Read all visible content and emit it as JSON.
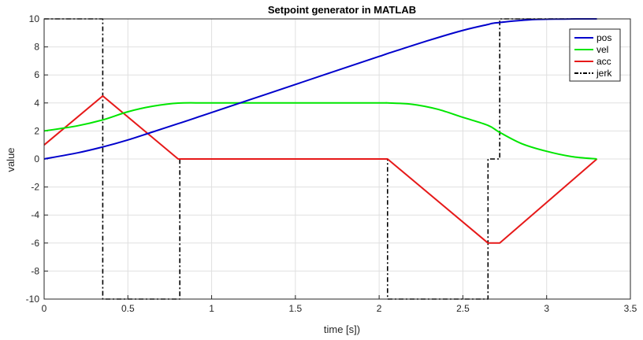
{
  "chart_data": {
    "type": "line",
    "title": "Setpoint generator in MATLAB",
    "xlabel": "time [s])",
    "ylabel": "value",
    "xlim": [
      0,
      3.5
    ],
    "ylim": [
      -10,
      10
    ],
    "xticks": [
      "0",
      "0.5",
      "1",
      "1.5",
      "2",
      "2.5",
      "3",
      "3.5"
    ],
    "yticks": [
      "-10",
      "-8",
      "-6",
      "-4",
      "-2",
      "0",
      "2",
      "4",
      "6",
      "8",
      "10"
    ],
    "grid": true,
    "legend_position": "top-right",
    "series": [
      {
        "name": "pos",
        "color": "#0000cc",
        "style": "solid",
        "x": [
          0,
          0.2,
          0.35,
          0.5,
          0.65,
          0.8,
          1.0,
          1.5,
          2.0,
          2.05,
          2.3,
          2.5,
          2.65,
          2.7,
          2.9,
          3.1,
          3.3
        ],
        "y": [
          0,
          0.44,
          0.86,
          1.36,
          1.94,
          2.52,
          3.32,
          5.32,
          7.32,
          7.52,
          8.48,
          9.18,
          9.6,
          9.72,
          9.94,
          9.99,
          10.0
        ]
      },
      {
        "name": "vel",
        "color": "#00e600",
        "style": "solid",
        "x": [
          0,
          0.2,
          0.35,
          0.5,
          0.65,
          0.8,
          1.0,
          1.5,
          2.0,
          2.05,
          2.2,
          2.35,
          2.5,
          2.65,
          2.72,
          2.85,
          3.0,
          3.15,
          3.3
        ],
        "y": [
          2.0,
          2.37,
          2.79,
          3.37,
          3.77,
          3.99,
          4.0,
          4.0,
          4.0,
          4.0,
          3.9,
          3.55,
          2.97,
          2.4,
          1.9,
          1.1,
          0.55,
          0.17,
          0.0
        ]
      },
      {
        "name": "acc",
        "color": "#e61919",
        "style": "solid",
        "x": [
          0,
          0.35,
          0.8,
          2.05,
          2.65,
          2.72,
          3.3
        ],
        "y": [
          1.0,
          4.5,
          0.0,
          0.0,
          -6.0,
          -6.0,
          0.0
        ]
      },
      {
        "name": "jerk",
        "color": "#000000",
        "style": "dashdot",
        "x": [
          0,
          0.35,
          0.35,
          0.81,
          0.81,
          2.05,
          2.05,
          2.65,
          2.65,
          2.72,
          2.72,
          3.3
        ],
        "y": [
          10,
          10,
          -10,
          -10,
          0,
          0,
          -10,
          -10,
          0,
          0,
          10,
          10
        ]
      }
    ]
  }
}
